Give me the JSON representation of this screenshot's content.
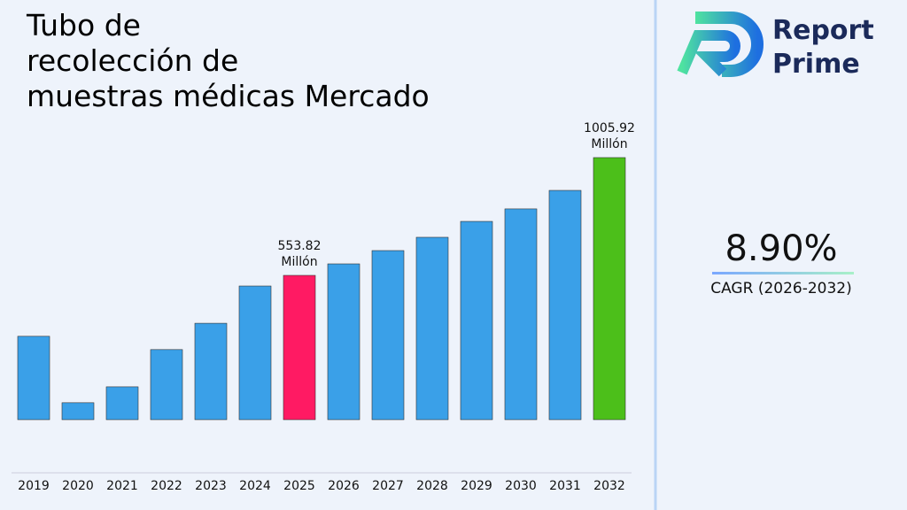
{
  "chart_data": {
    "type": "bar",
    "title": [
      "Tubo de",
      "recolección de",
      "muestras médicas Mercado"
    ],
    "categories": [
      "2019",
      "2020",
      "2021",
      "2022",
      "2023",
      "2024",
      "2025",
      "2026",
      "2027",
      "2028",
      "2029",
      "2030",
      "2031",
      "2032"
    ],
    "values": [
      320,
      65,
      126,
      269,
      370,
      513,
      553.82,
      598,
      649,
      700,
      761,
      809,
      880,
      1005.92
    ],
    "value_labels": [
      null,
      null,
      null,
      null,
      null,
      null,
      "553.82\nMillón",
      null,
      null,
      null,
      null,
      null,
      null,
      "1005.92\nMillón"
    ],
    "colors": [
      "#3aa0e8",
      "#3aa0e8",
      "#3aa0e8",
      "#3aa0e8",
      "#3aa0e8",
      "#3aa0e8",
      "#ff1a63",
      "#3aa0e8",
      "#3aa0e8",
      "#3aa0e8",
      "#3aa0e8",
      "#3aa0e8",
      "#3aa0e8",
      "#4cbf1a"
    ],
    "ylim": [
      -204,
      1135
    ]
  },
  "cagr": {
    "value": "8.90%",
    "label": "CAGR (2026-2032)"
  },
  "logo": [
    "Report",
    "Prime"
  ]
}
